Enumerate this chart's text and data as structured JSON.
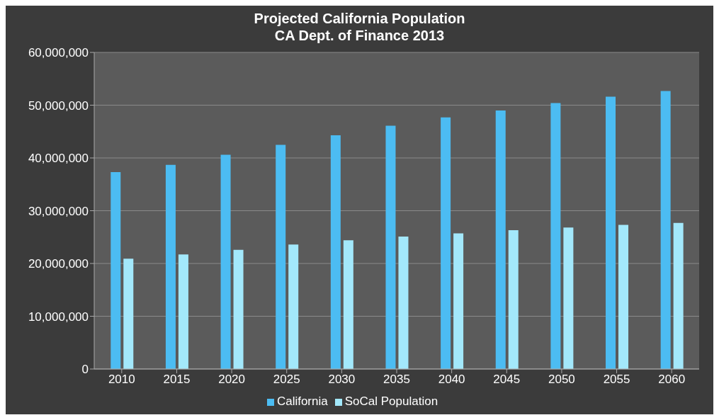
{
  "chart_data": {
    "type": "bar",
    "title": "Projected California Population",
    "subtitle": "CA Dept. of Finance 2013",
    "categories": [
      "2010",
      "2015",
      "2020",
      "2025",
      "2030",
      "2035",
      "2040",
      "2045",
      "2050",
      "2055",
      "2060"
    ],
    "series": [
      {
        "name": "California",
        "color": "#4cbcf2",
        "values": [
          37300000,
          38700000,
          40600000,
          42500000,
          44300000,
          46100000,
          47700000,
          49000000,
          50400000,
          51600000,
          52700000
        ]
      },
      {
        "name": "SoCal Population",
        "color": "#a3e8fb",
        "values": [
          20900000,
          21700000,
          22600000,
          23600000,
          24400000,
          25100000,
          25700000,
          26300000,
          26800000,
          27300000,
          27700000
        ]
      }
    ],
    "ylim": [
      0,
      60000000
    ],
    "yticks": [
      0,
      {
        "value": 10000000,
        "label": "10,000,000"
      },
      {
        "value": 20000000,
        "label": "20,000,000"
      },
      {
        "value": 30000000,
        "label": "30,000,000"
      },
      {
        "value": 40000000,
        "label": "40,000,000"
      },
      {
        "value": 50000000,
        "label": "50,000,000"
      },
      {
        "value": 60000000,
        "label": "60,000,000"
      }
    ],
    "grid": "y",
    "legend": "bottom"
  }
}
